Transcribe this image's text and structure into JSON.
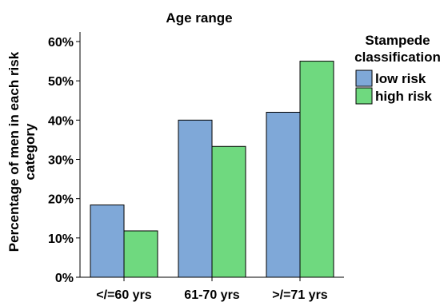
{
  "chart_data": {
    "type": "bar",
    "title": "Age range",
    "xlabel": "",
    "ylabel_line1": "Percentage of men in each risk",
    "ylabel_line2": "category",
    "categories": [
      "</=60 yrs",
      "61-70 yrs",
      ">/=71 yrs"
    ],
    "series": [
      {
        "name": "low risk",
        "values": [
          18.4,
          40.0,
          42.0
        ],
        "color": "#7fa8d8"
      },
      {
        "name": "high risk",
        "values": [
          11.8,
          33.3,
          55.0
        ],
        "color": "#6fd97f"
      }
    ],
    "ylim": [
      0,
      60
    ],
    "yticks": [
      "0%",
      "10%",
      "20%",
      "30%",
      "40%",
      "50%",
      "60%"
    ],
    "grid": false,
    "legend": {
      "title_line1": "Stampede",
      "title_line2": "classification",
      "position": "right"
    }
  }
}
